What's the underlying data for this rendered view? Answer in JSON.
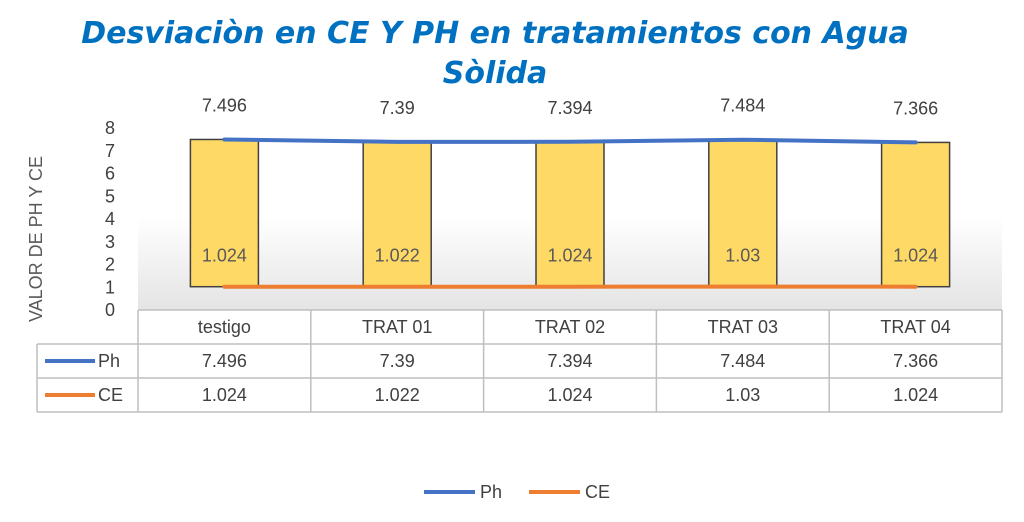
{
  "chart_data": {
    "type": "bar",
    "title_line1": "Desviaciòn en CE Y PH en tratamientos con  Agua",
    "title_line2": "Sòlida",
    "ylabel": "VALOR DE PH Y CE",
    "ylim": [
      0,
      8
    ],
    "yticks": [
      "0",
      "1",
      "2",
      "3",
      "4",
      "5",
      "6",
      "7",
      "8"
    ],
    "categories": [
      "testigo",
      "TRAT  01",
      "TRAT 02",
      "TRAT 03",
      "TRAT 04"
    ],
    "series": [
      {
        "name": "Ph",
        "values": [
          7.496,
          7.39,
          7.394,
          7.484,
          7.366
        ],
        "labels": [
          "7.496",
          "7.39",
          "7.394",
          "7.484",
          "7.366"
        ],
        "color": "#4472C4"
      },
      {
        "name": "CE",
        "values": [
          1.024,
          1.022,
          1.024,
          1.03,
          1.024
        ],
        "labels": [
          "1.024",
          "1.022",
          "1.024",
          "1.03",
          "1.024"
        ],
        "color": "#ED7D31"
      }
    ],
    "bar_fill": "#FFD966",
    "bar_stroke": "#404040",
    "legend_position": "bottom",
    "data_table": true,
    "grid": false
  }
}
